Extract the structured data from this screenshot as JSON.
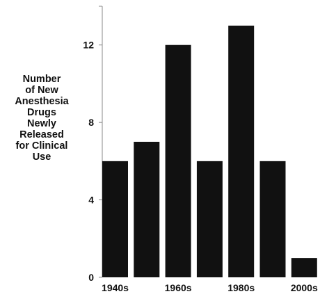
{
  "chart_data": {
    "type": "bar",
    "categories": [
      "1940s",
      "",
      "1960s",
      "",
      "1980s",
      "",
      "2000s"
    ],
    "values": [
      6,
      7,
      12,
      6,
      13,
      6,
      1
    ],
    "title": "",
    "xlabel": "",
    "ylabel_lines": [
      "Number",
      "of New",
      "Anesthesia",
      "Drugs",
      "Newly",
      "Released",
      "for Clinical",
      "Use"
    ],
    "ylim": [
      0,
      14
    ],
    "yticks": [
      0,
      4,
      8,
      12
    ],
    "grid": false,
    "legend": "none",
    "bar_color": "#111111",
    "axis_color": "#888888"
  }
}
